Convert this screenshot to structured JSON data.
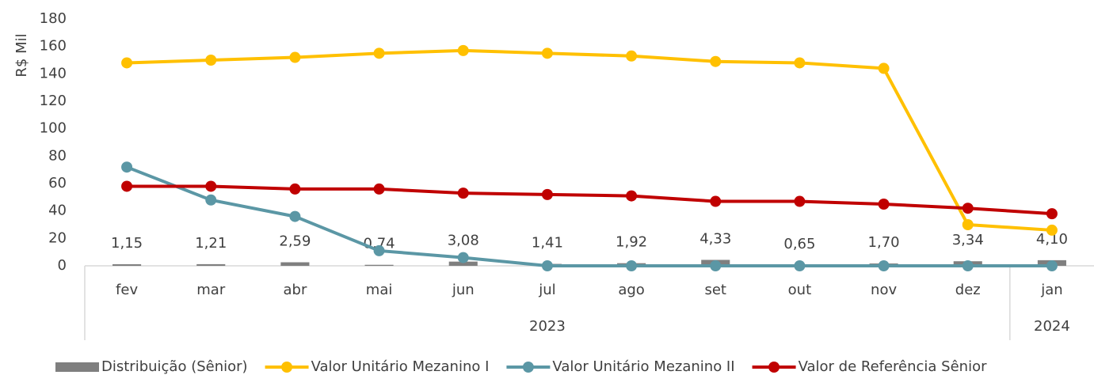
{
  "chart_data": {
    "type": "bar-line",
    "y_label": "R$ Mil",
    "categories": [
      "fev",
      "mar",
      "abr",
      "mai",
      "jun",
      "jul",
      "ago",
      "set",
      "out",
      "nov",
      "dez",
      "jan"
    ],
    "year_groups": [
      {
        "label": "2023",
        "span": 11
      },
      {
        "label": "2024",
        "span": 1
      }
    ],
    "ylim": [
      0,
      180
    ],
    "yticks": [
      0,
      20,
      40,
      60,
      80,
      100,
      120,
      140,
      160,
      180
    ],
    "series": [
      {
        "name": "Distribuição (Sênior)",
        "type": "bar",
        "color": "#7f7f7f",
        "values": [
          1.15,
          1.21,
          2.59,
          0.74,
          3.08,
          1.41,
          1.92,
          4.33,
          0.65,
          1.7,
          3.34,
          4.1
        ],
        "value_labels": [
          "1,15",
          "1,21",
          "2,59",
          "0,74",
          "3,08",
          "1,41",
          "1,92",
          "4,33",
          "0,65",
          "1,70",
          "3,34",
          "4,10"
        ]
      },
      {
        "name": "Valor Unitário Mezanino I",
        "type": "line",
        "color": "#ffc000",
        "values": [
          148,
          150,
          152,
          155,
          157,
          155,
          153,
          149,
          148,
          144,
          30,
          26
        ]
      },
      {
        "name": "Valor Unitário Mezanino II",
        "type": "line",
        "color": "#5b97a5",
        "values": [
          72,
          48,
          36,
          11,
          6,
          0,
          0,
          0,
          0,
          0,
          0,
          0
        ]
      },
      {
        "name": "Valor de Referência Sênior",
        "type": "line",
        "color": "#c00000",
        "values": [
          58,
          58,
          56,
          56,
          53,
          52,
          51,
          47,
          47,
          45,
          42,
          38
        ]
      }
    ]
  }
}
